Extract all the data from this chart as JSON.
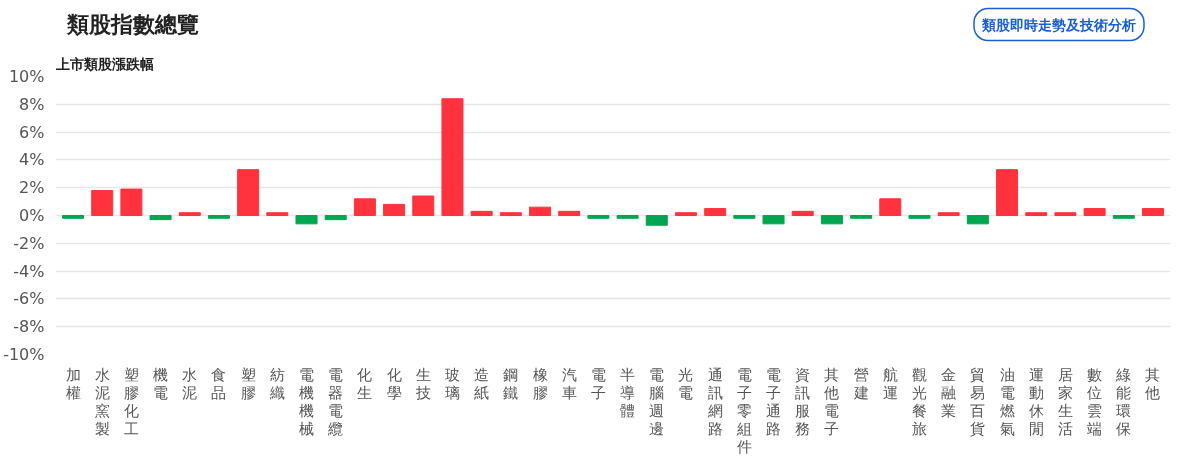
{
  "chart_data": {
    "type": "bar",
    "title": "類股指數總覽",
    "subtitle": "上市類股漲跌幅",
    "annotations": [
      "類股即時走勢及技術分析"
    ],
    "categories": [
      "加權",
      "水泥窯製",
      "塑膠化工",
      "機電",
      "水泥",
      "食品",
      "塑膠",
      "紡織",
      "電機機械",
      "電器電纜",
      "化生",
      "化學",
      "生技",
      "玻璃",
      "造紙",
      "鋼鐵",
      "橡膠",
      "汽車",
      "電子",
      "半導體",
      "電腦週邊",
      "光電",
      "通訊網路",
      "電子零組件",
      "電子通路",
      "資訊服務",
      "其他電子",
      "營建",
      "航運",
      "觀光餐旅",
      "金融業",
      "貿易百貨",
      "油電燃氣",
      "運動休閒",
      "居家生活",
      "數位雲端",
      "綠能環保",
      "其他"
    ],
    "values": [
      -0.2,
      1.8,
      1.9,
      -0.3,
      0.2,
      -0.2,
      3.3,
      0.2,
      -0.6,
      -0.3,
      1.2,
      0.8,
      1.4,
      8.4,
      0.3,
      0.2,
      0.6,
      0.3,
      -0.2,
      -0.2,
      -0.7,
      0.2,
      0.5,
      -0.2,
      -0.6,
      0.3,
      -0.6,
      -0.2,
      1.2,
      -0.2,
      0.2,
      -0.6,
      3.3,
      0.2,
      0.2,
      0.5,
      -0.2,
      0.5
    ],
    "colors": [
      "#00a650",
      "#ff333d",
      "#ff333d",
      "#00a650",
      "#ff333d",
      "#00a650",
      "#ff333d",
      "#ff333d",
      "#00a650",
      "#00a650",
      "#ff333d",
      "#ff333d",
      "#ff333d",
      "#ff333d",
      "#ff333d",
      "#ff333d",
      "#ff333d",
      "#ff333d",
      "#00a650",
      "#00a650",
      "#00a650",
      "#ff333d",
      "#ff333d",
      "#00a650",
      "#00a650",
      "#ff333d",
      "#00a650",
      "#00a650",
      "#ff333d",
      "#00a650",
      "#ff333d",
      "#00a650",
      "#ff333d",
      "#ff333d",
      "#ff333d",
      "#ff333d",
      "#00a650",
      "#ff333d"
    ],
    "ylim": [
      -10,
      10
    ],
    "yticks": [
      {
        "value": -10,
        "label": "-10%"
      },
      {
        "value": -8,
        "label": "-8%"
      },
      {
        "value": -6,
        "label": "-6%"
      },
      {
        "value": -4,
        "label": "-4%"
      },
      {
        "value": -2,
        "label": "-2%"
      },
      {
        "value": 0,
        "label": "0%"
      },
      {
        "value": 2,
        "label": "2%"
      },
      {
        "value": 4,
        "label": "4%"
      },
      {
        "value": 6,
        "label": "6%"
      },
      {
        "value": 8,
        "label": "8%"
      },
      {
        "value": 10,
        "label": "10%"
      }
    ],
    "grid": "y"
  }
}
